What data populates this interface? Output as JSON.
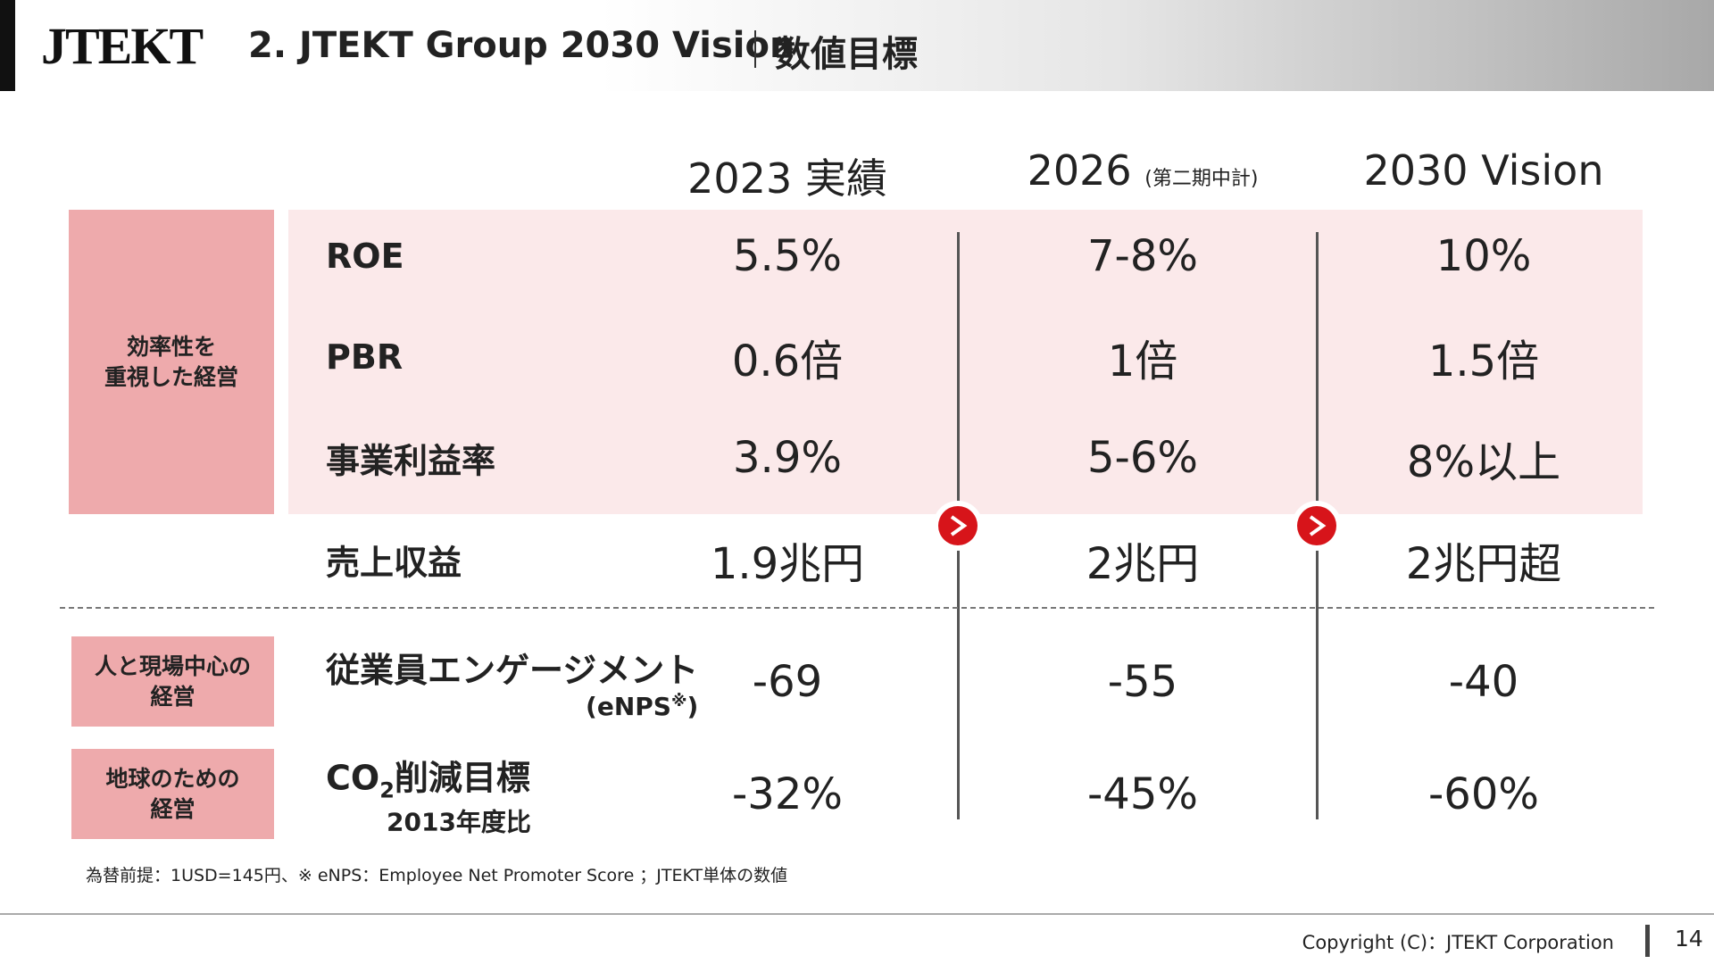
{
  "header": {
    "logo": "JTEKT",
    "title": "2. JTEKT Group 2030 Vision",
    "subtitle": "数値目標"
  },
  "columns": [
    {
      "label": "2023 実績"
    },
    {
      "label": "2026",
      "note": "(第二期中計)"
    },
    {
      "label": "2030 Vision"
    }
  ],
  "groups": [
    {
      "lines": [
        "効率性を",
        "重視した経営"
      ]
    },
    {
      "lines": [
        "人と現場中心の",
        "経営"
      ]
    },
    {
      "lines": [
        "地球のための",
        "経営"
      ]
    }
  ],
  "rows": [
    {
      "label": "ROE",
      "values": [
        "5.5%",
        "7-8%",
        "10%"
      ]
    },
    {
      "label": "PBR",
      "values": [
        "0.6倍",
        "1倍",
        "1.5倍"
      ]
    },
    {
      "label": "事業利益率",
      "values": [
        "3.9%",
        "5-6%",
        "8%以上"
      ]
    },
    {
      "label": "売上収益",
      "values": [
        "1.9兆円",
        "2兆円",
        "2兆円超"
      ]
    },
    {
      "label": "従業員エンゲージメント",
      "sublabel_parts": [
        "(eNPS",
        "※",
        ")"
      ],
      "values": [
        "-69",
        "-55",
        "-40"
      ]
    },
    {
      "label_parts": [
        "CO",
        "2",
        "削減目標"
      ],
      "sublabel": "2013年度比",
      "values": [
        "-32%",
        "-45%",
        "-60%"
      ]
    }
  ],
  "footnote": "為替前提：1USD=145円、※ eNPS：Employee Net Promoter Score ；JTEKT単体の数値",
  "footer": {
    "copyright": "Copyright (C)：JTEKT Corporation",
    "page": "14"
  }
}
